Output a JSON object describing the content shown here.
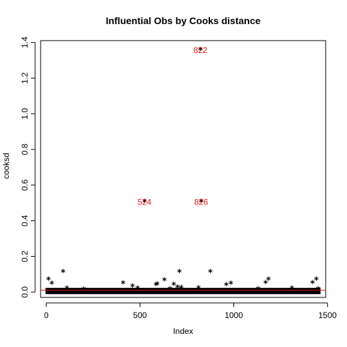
{
  "chart_data": {
    "type": "scatter",
    "title": "Influential Obs by Cooks distance",
    "xlabel": "Index",
    "ylabel": "cooksd",
    "xlim": [
      -30,
      1490
    ],
    "ylim": [
      -0.03,
      1.41
    ],
    "xticks": [
      0,
      500,
      1000,
      1500
    ],
    "yticks": [
      0.0,
      0.2,
      0.4,
      0.6,
      0.8,
      1.0,
      1.2,
      1.4
    ],
    "marker": "*",
    "grid": false,
    "n_points": 1460,
    "cutoff_line": {
      "value": 0.011,
      "color": "#e8161b"
    },
    "points": [
      {
        "x": 12,
        "y": 0.068
      },
      {
        "x": 30,
        "y": 0.045
      },
      {
        "x": 90,
        "y": 0.11
      },
      {
        "x": 110,
        "y": 0.018
      },
      {
        "x": 200,
        "y": 0.012
      },
      {
        "x": 410,
        "y": 0.048
      },
      {
        "x": 460,
        "y": 0.03
      },
      {
        "x": 488,
        "y": 0.018
      },
      {
        "x": 524,
        "y": 0.505
      },
      {
        "x": 585,
        "y": 0.038
      },
      {
        "x": 592,
        "y": 0.042
      },
      {
        "x": 630,
        "y": 0.065
      },
      {
        "x": 660,
        "y": 0.015
      },
      {
        "x": 680,
        "y": 0.04
      },
      {
        "x": 700,
        "y": 0.025
      },
      {
        "x": 710,
        "y": 0.11
      },
      {
        "x": 720,
        "y": 0.022
      },
      {
        "x": 812,
        "y": 0.02
      },
      {
        "x": 826,
        "y": 0.505
      },
      {
        "x": 822,
        "y": 1.355
      },
      {
        "x": 875,
        "y": 0.11
      },
      {
        "x": 960,
        "y": 0.038
      },
      {
        "x": 985,
        "y": 0.045
      },
      {
        "x": 1130,
        "y": 0.015
      },
      {
        "x": 1170,
        "y": 0.05
      },
      {
        "x": 1185,
        "y": 0.068
      },
      {
        "x": 1310,
        "y": 0.018
      },
      {
        "x": 1420,
        "y": 0.05
      },
      {
        "x": 1440,
        "y": 0.068
      },
      {
        "x": 1450,
        "y": 0.015
      }
    ],
    "labels": [
      {
        "text": "524",
        "x": 524,
        "y": 0.505
      },
      {
        "text": "826",
        "x": 826,
        "y": 0.505
      },
      {
        "text": "822",
        "x": 822,
        "y": 1.355
      }
    ],
    "colors": {
      "points": "#000000",
      "labels": "#e8161b",
      "cutoff": "#e8161b"
    }
  }
}
